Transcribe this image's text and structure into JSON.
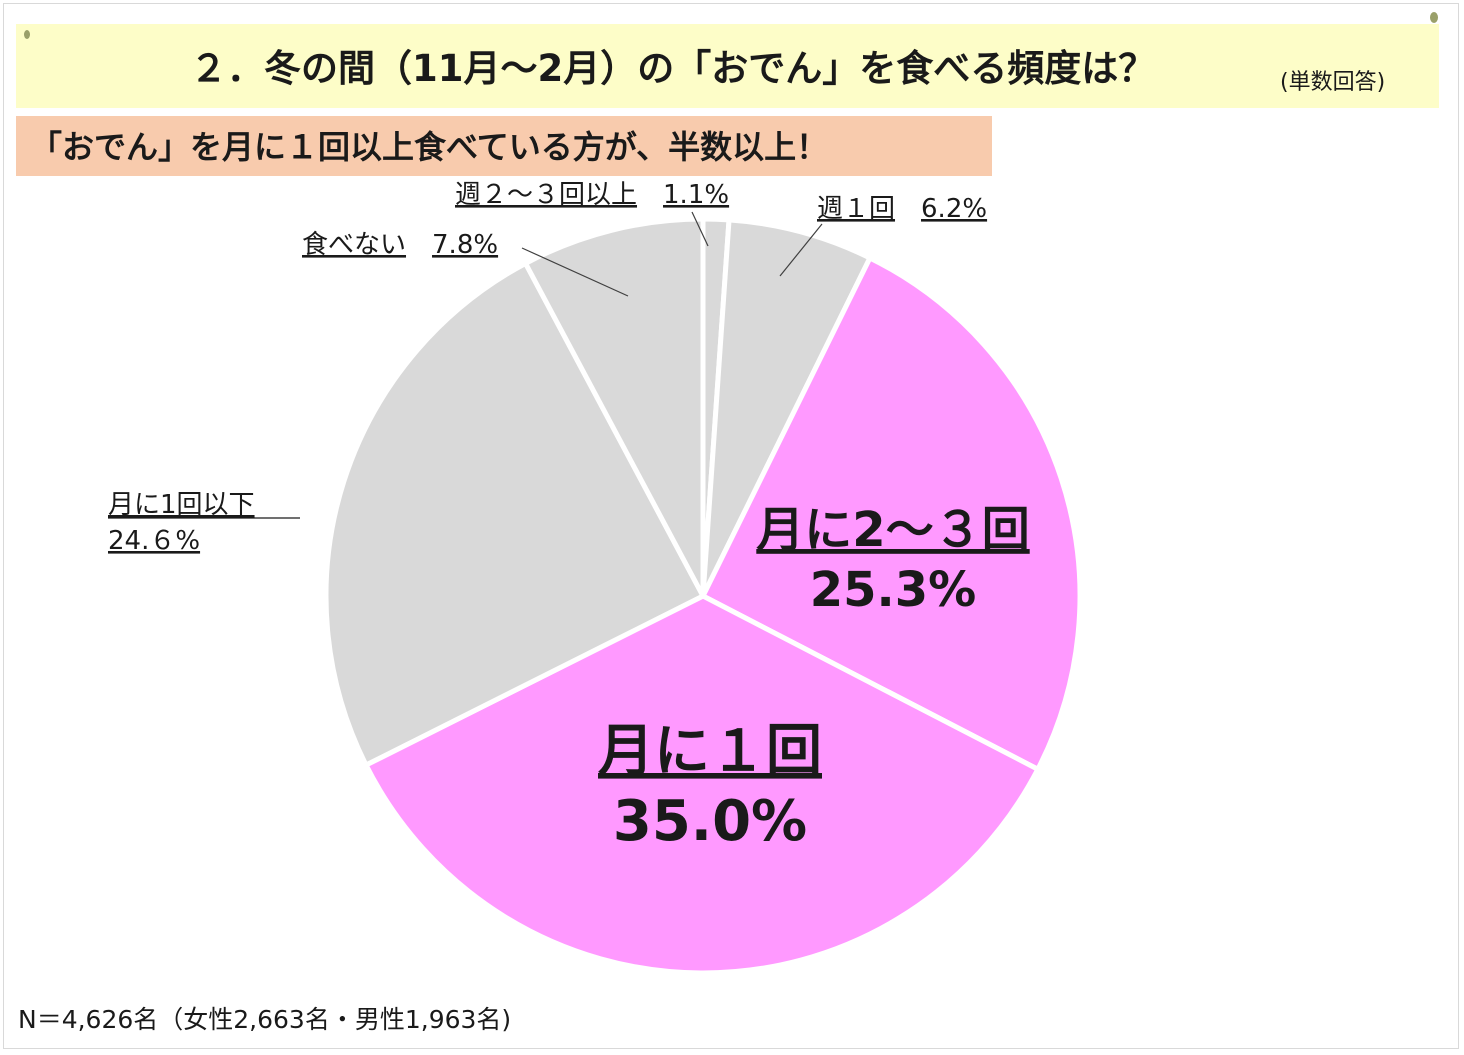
{
  "title": "２．冬の間（11月～2月）の「おでん」を食べる頻度は？",
  "title_note": "(単数回答)",
  "subtitle": "「おでん」を月に１回以上食べている方が、半数以上！",
  "footnote": "N＝4,626名（女性2,663名・男性1,963名)",
  "colors": {
    "highlight": "#ff99ff",
    "other": "#d9d9d9",
    "title_bg": "#fdfdc8",
    "subtitle_bg": "#f8cbad"
  },
  "chart_data": {
    "type": "pie",
    "start": "12 o'clock",
    "direction": "clockwise",
    "slices": [
      {
        "key": "week23",
        "label": "週２～３回以上",
        "value_label": "1.1%",
        "value": 1.1,
        "highlight": false
      },
      {
        "key": "week1",
        "label": "週１回",
        "value_label": "6.2%",
        "value": 6.2,
        "highlight": false
      },
      {
        "key": "month23",
        "label": "月に2～３回",
        "value_label": "25.3%",
        "value": 25.3,
        "highlight": true
      },
      {
        "key": "month1",
        "label": "月に１回",
        "value_label": "35.0%",
        "value": 35.0,
        "highlight": true
      },
      {
        "key": "less",
        "label": "月に1回以下",
        "value_label": "24.６%",
        "value": 24.6,
        "highlight": false
      },
      {
        "key": "none",
        "label": "食べない",
        "value_label": "7.8%",
        "value": 7.8,
        "highlight": false
      }
    ]
  }
}
